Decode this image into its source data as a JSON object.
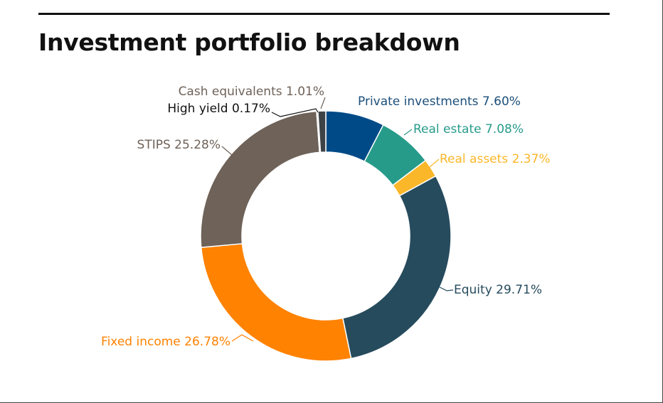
{
  "chart_data": {
    "type": "pie",
    "variant": "donut",
    "title": "Investment portfolio breakdown",
    "legend": "none",
    "slices": [
      {
        "label": "Private investments",
        "value_text": "7.60%",
        "value": 7.6,
        "color": "#004B87"
      },
      {
        "label": "Real estate",
        "value_text": "7.08%",
        "value": 7.08,
        "color": "#269B8A"
      },
      {
        "label": "Real assets",
        "value_text": "2.37%",
        "value": 2.37,
        "color": "#FBB72A"
      },
      {
        "label": "Equity",
        "value_text": "29.71%",
        "value": 29.71,
        "color": "#264B5D"
      },
      {
        "label": "Fixed income",
        "value_text": "26.78%",
        "value": 26.78,
        "color": "#FF8200"
      },
      {
        "label": "STIPS",
        "value_text": "25.28%",
        "value": 25.28,
        "color": "#6E6259"
      },
      {
        "label": "High yield",
        "value_text": "0.17%",
        "value": 0.17,
        "color": "#A7A8A9"
      },
      {
        "label": "Cash equivalents",
        "value_text": "1.01%",
        "value": 1.01,
        "color": "#3D4246"
      }
    ],
    "label_colors": [
      "#1C4F7A",
      "#269B8A",
      "#FBB72A",
      "#264B5D",
      "#FF8200",
      "#6E6259",
      "#111111",
      "#6E6259"
    ]
  }
}
